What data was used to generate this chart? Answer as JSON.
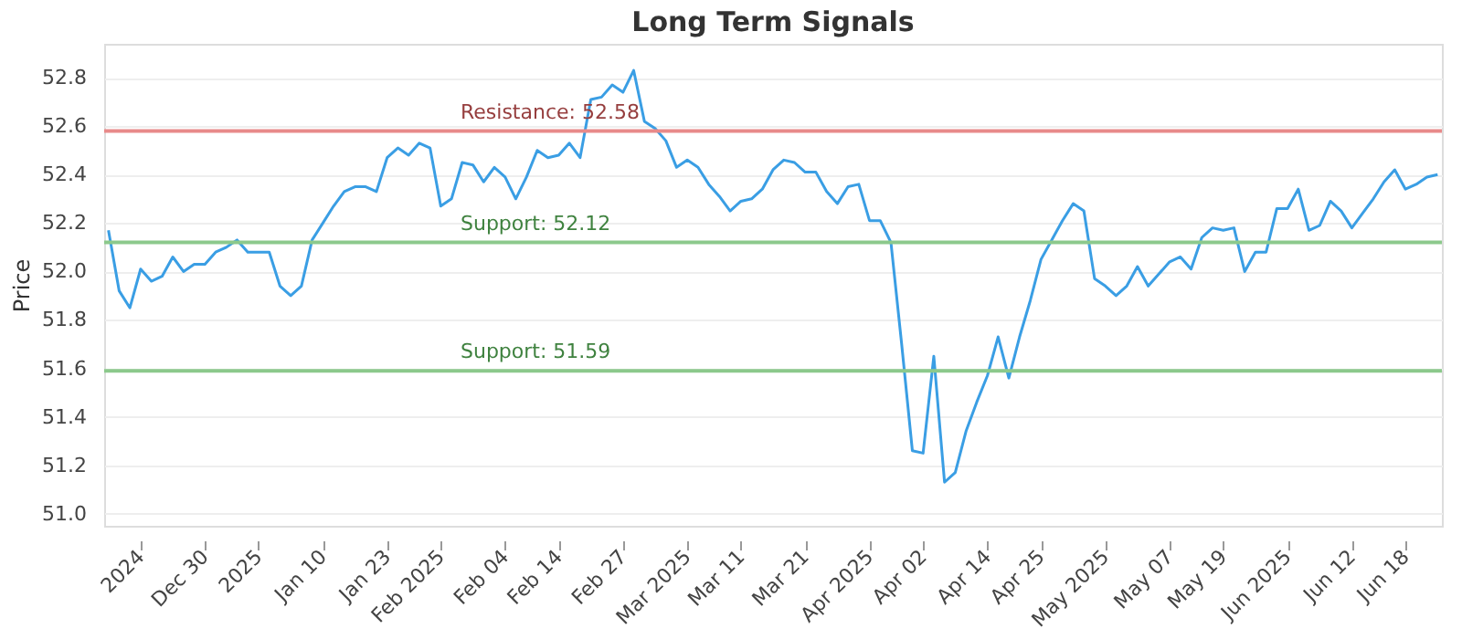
{
  "chart_data": {
    "type": "line",
    "title": "Long Term Signals",
    "ylabel": "Price",
    "categories": [
      null,
      null,
      null,
      "2024",
      null,
      null,
      null,
      null,
      null,
      "Dec 30",
      null,
      null,
      null,
      null,
      "2025",
      null,
      null,
      null,
      null,
      null,
      "Jan 10",
      null,
      null,
      null,
      null,
      null,
      "Jan 23",
      null,
      null,
      null,
      null,
      "Feb 2025",
      null,
      null,
      null,
      null,
      null,
      "Feb 04",
      null,
      null,
      null,
      null,
      "Feb 14",
      null,
      null,
      null,
      null,
      null,
      "Feb 27",
      null,
      null,
      null,
      null,
      null,
      "Mar 2025",
      null,
      null,
      null,
      null,
      "Mar 11",
      null,
      null,
      null,
      null,
      null,
      "Mar 21",
      null,
      null,
      null,
      null,
      null,
      "Apr 2025",
      null,
      null,
      null,
      null,
      "Apr 02",
      null,
      null,
      null,
      null,
      null,
      "Apr 14",
      null,
      null,
      null,
      null,
      "Apr 25",
      null,
      null,
      null,
      null,
      null,
      "May 2025",
      null,
      null,
      null,
      null,
      null,
      "May 07",
      null,
      null,
      null,
      null,
      "May 19",
      null,
      null,
      null,
      null,
      null,
      "Jun 2025",
      null,
      null,
      null,
      null,
      null,
      "Jun 12",
      null,
      null,
      null,
      null,
      "Jun 18",
      null,
      null,
      null
    ],
    "series": [
      {
        "color": "#3a9ee4",
        "values": [
          52.17,
          51.92,
          51.85,
          52.01,
          51.96,
          51.98,
          52.06,
          52.0,
          52.03,
          52.03,
          52.08,
          52.1,
          52.13,
          52.08,
          52.08,
          52.08,
          51.94,
          51.9,
          51.94,
          52.13,
          52.2,
          52.27,
          52.33,
          52.35,
          52.35,
          52.33,
          52.47,
          52.51,
          52.48,
          52.53,
          52.51,
          52.27,
          52.3,
          52.45,
          52.44,
          52.37,
          52.43,
          52.39,
          52.3,
          52.39,
          52.5,
          52.47,
          52.48,
          52.53,
          52.47,
          52.71,
          52.72,
          52.77,
          52.74,
          52.83,
          52.62,
          52.59,
          52.54,
          52.43,
          52.46,
          52.43,
          52.36,
          52.31,
          52.25,
          52.29,
          52.3,
          52.34,
          52.42,
          52.46,
          52.45,
          52.41,
          52.41,
          52.33,
          52.28,
          52.35,
          52.36,
          52.21,
          52.21,
          52.12,
          51.7,
          51.26,
          51.25,
          51.65,
          51.13,
          51.17,
          51.34,
          51.46,
          51.57,
          51.73,
          51.56,
          51.73,
          51.88,
          52.05,
          52.13,
          52.21,
          52.28,
          52.25,
          51.97,
          51.94,
          51.9,
          51.94,
          52.02,
          51.94,
          51.99,
          52.04,
          52.06,
          52.01,
          52.14,
          52.18,
          52.17,
          52.18,
          52.0,
          52.08,
          52.08,
          52.26,
          52.26,
          52.34,
          52.17,
          52.19,
          52.29,
          52.25,
          52.18,
          52.24,
          52.3,
          52.37,
          52.42,
          52.34,
          52.36,
          52.39,
          52.4
        ]
      }
    ],
    "ylim": [
      50.95,
      52.94
    ],
    "yticks": [
      {
        "value": 51.0,
        "label": "51.0"
      },
      {
        "value": 51.2,
        "label": "51.2"
      },
      {
        "value": 51.4,
        "label": "51.4"
      },
      {
        "value": 51.6,
        "label": "51.6"
      },
      {
        "value": 51.8,
        "label": "51.8"
      },
      {
        "value": 52.0,
        "label": "52.0"
      },
      {
        "value": 52.2,
        "label": "52.2"
      },
      {
        "value": 52.4,
        "label": "52.4"
      },
      {
        "value": 52.6,
        "label": "52.6"
      },
      {
        "value": 52.8,
        "label": "52.8"
      }
    ],
    "ref_lines": [
      {
        "axis": "y",
        "value": 52.58,
        "label": "Resistance: 52.58",
        "color": "#e88a8a"
      },
      {
        "axis": "y",
        "value": 52.12,
        "label": "Support: 52.12",
        "color": "#8cc98c"
      },
      {
        "axis": "y",
        "value": 51.59,
        "label": "Support: 51.59",
        "color": "#8cc98c"
      }
    ],
    "grid": "y",
    "marker": "none",
    "line_style": "solid"
  }
}
